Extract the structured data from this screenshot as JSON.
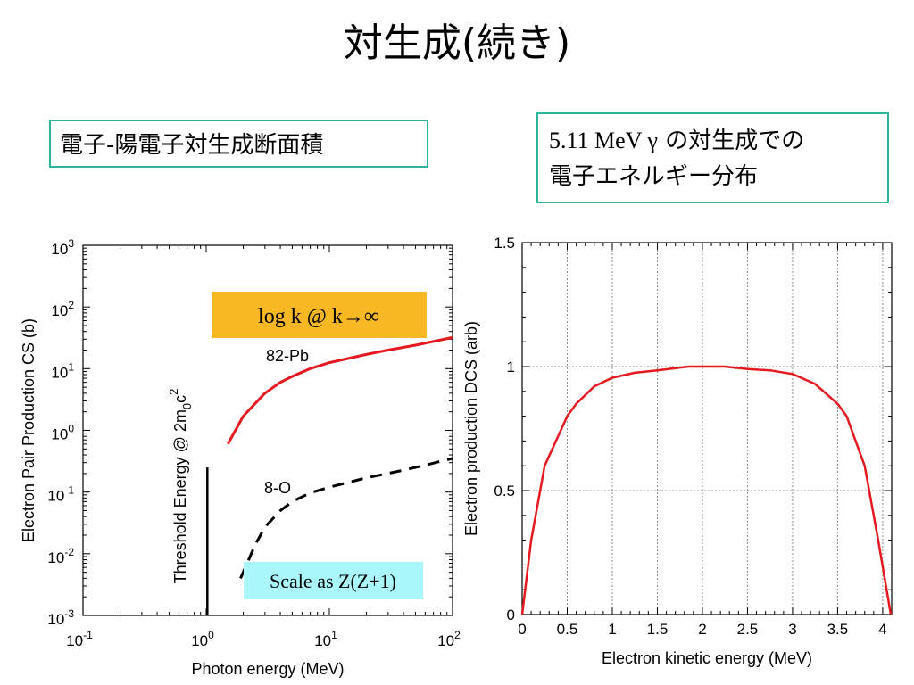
{
  "slide": {
    "title": "対生成(続き)",
    "box_left": "電子-陽電子対生成断面積",
    "box_right_line1_a": "5.11 MeV γ",
    "box_right_line1_b": " の対生成での",
    "box_right_line2": "電子エネルギー分布"
  },
  "colors": {
    "box_border": "#2bb59a",
    "red_curve": "#e5191f",
    "log_box": "#f7b824",
    "scale_box": "#aaf7fb"
  },
  "chart_data": [
    {
      "type": "line",
      "scale": "log-log",
      "xlabel": "Photon energy (MeV)",
      "ylabel": "Electron Pair Production CS (b)",
      "xlim": [
        0.1,
        100
      ],
      "ylim": [
        0.001,
        1000
      ],
      "x_ticks": [
        {
          "base": "10",
          "exp": "-1"
        },
        {
          "base": "10",
          "exp": "0"
        },
        {
          "base": "10",
          "exp": "1"
        },
        {
          "base": "10",
          "exp": "2"
        }
      ],
      "y_ticks": [
        {
          "base": "10",
          "exp": "3"
        },
        {
          "base": "10",
          "exp": "2"
        },
        {
          "base": "10",
          "exp": "1"
        },
        {
          "base": "10",
          "exp": "0"
        },
        {
          "base": "10",
          "exp": "-1"
        },
        {
          "base": "10",
          "exp": "-2"
        },
        {
          "base": "10",
          "exp": "-3"
        }
      ],
      "series": [
        {
          "name": "82-Pb",
          "style": "solid",
          "color": "#e5191f",
          "x": [
            1.5,
            2,
            3,
            4,
            5,
            7,
            10,
            20,
            30,
            50,
            100
          ],
          "y": [
            0.6,
            1.7,
            4.0,
            6.0,
            7.5,
            10.0,
            12.5,
            17.0,
            20.0,
            24.0,
            32.0
          ]
        },
        {
          "name": "8-O",
          "style": "dashed",
          "color": "#000000",
          "x": [
            1.9,
            2.5,
            3,
            4,
            5,
            7,
            10,
            20,
            30,
            50,
            100
          ],
          "y": [
            0.004,
            0.014,
            0.027,
            0.05,
            0.07,
            0.097,
            0.12,
            0.17,
            0.2,
            0.25,
            0.35
          ]
        }
      ],
      "threshold": {
        "x": 1.022,
        "y_top": 0.25,
        "label_main": "Threshold Energy @ 2m",
        "label_sub": "0",
        "label_tail": "c",
        "label_sup": "2"
      },
      "annotations": {
        "log_text": "log k  @  k→∞",
        "scale_text": "Scale as Z(Z+1)"
      }
    },
    {
      "type": "line",
      "xlabel": "Electron kinetic energy (MeV)",
      "ylabel": "Electron production DCS (arb)",
      "xlim": [
        0,
        4.1
      ],
      "ylim": [
        0,
        1.5
      ],
      "grid": true,
      "x_ticks": [
        "0",
        "0.5",
        "1",
        "1.5",
        "2",
        "2.5",
        "3",
        "3.5",
        "4"
      ],
      "y_ticks": [
        "0",
        "0.5",
        "1",
        "1.5"
      ],
      "series": [
        {
          "name": "",
          "color": "#e5191f",
          "x": [
            0,
            0.1,
            0.25,
            0.5,
            0.6,
            0.8,
            1.0,
            1.25,
            1.5,
            1.85,
            2.25,
            2.5,
            2.75,
            3.0,
            3.25,
            3.5,
            3.6,
            3.8,
            3.95,
            4.09
          ],
          "y": [
            0.0,
            0.3,
            0.6,
            0.8,
            0.85,
            0.92,
            0.955,
            0.975,
            0.985,
            1.0,
            1.0,
            0.99,
            0.985,
            0.97,
            0.93,
            0.85,
            0.8,
            0.6,
            0.3,
            0.0
          ]
        }
      ]
    }
  ]
}
